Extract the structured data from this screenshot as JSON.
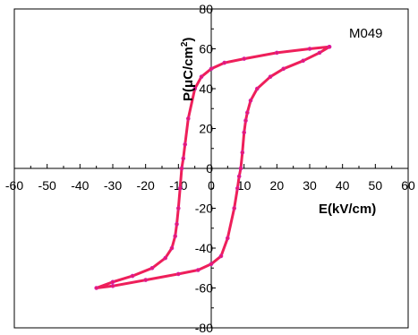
{
  "chart_data": {
    "type": "line",
    "title": "",
    "annotation": "M049",
    "xlabel": "E(kV/cm)",
    "ylabel_main": "P(μC/cm",
    "ylabel_sup": "2",
    "ylabel_close": ")",
    "xlim": [
      -60,
      60
    ],
    "ylim": [
      -80,
      80
    ],
    "xticks": [
      -60,
      -50,
      -40,
      -30,
      -20,
      -10,
      0,
      10,
      20,
      30,
      40,
      50,
      60
    ],
    "yticks": [
      -80,
      -60,
      -40,
      -20,
      0,
      20,
      40,
      60,
      80
    ],
    "grid": false,
    "legend": "none",
    "series": [
      {
        "color": "#ee1f5a",
        "marker_color": "#d61aa8",
        "x": [
          36,
          30,
          20,
          10,
          4,
          0,
          -3,
          -5,
          -7,
          -8,
          -8.5,
          -9,
          -9.5,
          -10,
          -10.5,
          -11,
          -12,
          -14,
          -18,
          -24,
          -30,
          -35,
          -30,
          -20,
          -10,
          -4,
          0,
          3,
          5,
          7,
          8,
          8.5,
          9,
          9.5,
          10,
          10.5,
          11,
          12,
          14,
          18,
          22,
          28,
          33,
          36
        ],
        "y": [
          61,
          60,
          58,
          55,
          53,
          50,
          46,
          40,
          25,
          12,
          5,
          0,
          -10,
          -20,
          -28,
          -34,
          -40,
          -45,
          -50,
          -54,
          -57,
          -60,
          -59,
          -56,
          -53,
          -51,
          -48,
          -44,
          -35,
          -20,
          -10,
          -4,
          0,
          8,
          18,
          24,
          28,
          34,
          40,
          46,
          50,
          54,
          58,
          61
        ]
      }
    ]
  }
}
